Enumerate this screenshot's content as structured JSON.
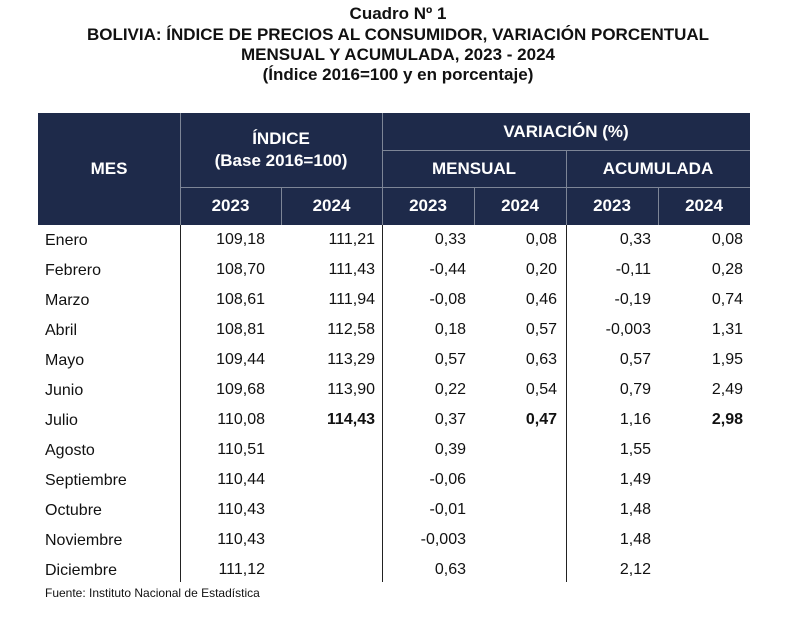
{
  "titles": {
    "line1": "Cuadro Nº 1",
    "line2": "BOLIVIA: ÍNDICE DE PRECIOS AL CONSUMIDOR, VARIACIÓN PORCENTUAL",
    "line3": "MENSUAL Y ACUMULADA, 2023 - 2024",
    "line4": "(Índice 2016=100 y en porcentaje)"
  },
  "header": {
    "mes": "MES",
    "indice": "ÍNDICE",
    "indice_base": "(Base 2016=100)",
    "variacion": "VARIACIÓN (%)",
    "mensual": "MENSUAL",
    "acumulada": "ACUMULADA",
    "years": [
      "2023",
      "2024",
      "2023",
      "2024",
      "2023",
      "2024"
    ]
  },
  "rows": [
    {
      "mes": "Enero",
      "i2023": "109,18",
      "i2024": "111,21",
      "m2023": "0,33",
      "m2024": "0,08",
      "a2023": "0,33",
      "a2024": "0,08"
    },
    {
      "mes": "Febrero",
      "i2023": "108,70",
      "i2024": "111,43",
      "m2023": "-0,44",
      "m2024": "0,20",
      "a2023": "-0,11",
      "a2024": "0,28"
    },
    {
      "mes": "Marzo",
      "i2023": "108,61",
      "i2024": "111,94",
      "m2023": "-0,08",
      "m2024": "0,46",
      "a2023": "-0,19",
      "a2024": "0,74"
    },
    {
      "mes": "Abril",
      "i2023": "108,81",
      "i2024": "112,58",
      "m2023": "0,18",
      "m2024": "0,57",
      "a2023": "-0,003",
      "a2024": "1,31"
    },
    {
      "mes": "Mayo",
      "i2023": "109,44",
      "i2024": "113,29",
      "m2023": "0,57",
      "m2024": "0,63",
      "a2023": "0,57",
      "a2024": "1,95"
    },
    {
      "mes": "Junio",
      "i2023": "109,68",
      "i2024": "113,90",
      "m2023": "0,22",
      "m2024": "0,54",
      "a2023": "0,79",
      "a2024": "2,49"
    },
    {
      "mes": "Julio",
      "i2023": "110,08",
      "i2024": "114,43",
      "m2023": "0,37",
      "m2024": "0,47",
      "a2023": "1,16",
      "a2024": "2,98"
    },
    {
      "mes": "Agosto",
      "i2023": "110,51",
      "i2024": "",
      "m2023": "0,39",
      "m2024": "",
      "a2023": "1,55",
      "a2024": ""
    },
    {
      "mes": "Septiembre",
      "i2023": "110,44",
      "i2024": "",
      "m2023": "-0,06",
      "m2024": "",
      "a2023": "1,49",
      "a2024": ""
    },
    {
      "mes": "Octubre",
      "i2023": "110,43",
      "i2024": "",
      "m2023": "-0,01",
      "m2024": "",
      "a2023": "1,48",
      "a2024": ""
    },
    {
      "mes": "Noviembre",
      "i2023": "110,43",
      "i2024": "",
      "m2023": "-0,003",
      "m2024": "",
      "a2023": "1,48",
      "a2024": ""
    },
    {
      "mes": "Diciembre",
      "i2023": "111,12",
      "i2024": "",
      "m2023": "0,63",
      "m2024": "",
      "a2023": "2,12",
      "a2024": ""
    }
  ],
  "source": "Fuente: Instituto Nacional de Estadística"
}
